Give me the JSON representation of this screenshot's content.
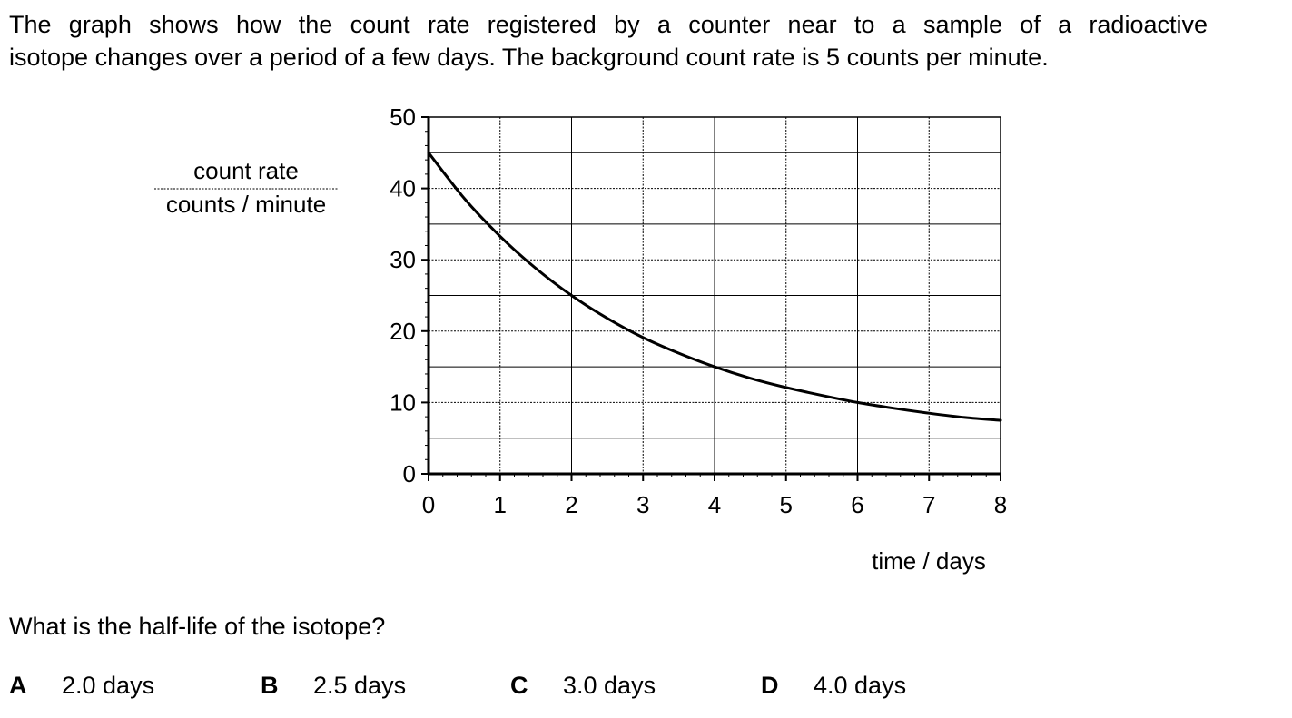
{
  "question": {
    "intro_line1": "The graph shows how the count rate registered by a counter near to a sample of a radioactive",
    "intro_line2": "isotope changes over a period of a few days. The background count rate is 5 counts per minute.",
    "prompt": "What is the half-life of the isotope?",
    "options": [
      {
        "letter": "A",
        "text": "2.0 days"
      },
      {
        "letter": "B",
        "text": "2.5 days"
      },
      {
        "letter": "C",
        "text": "3.0 days"
      },
      {
        "letter": "D",
        "text": "4.0 days"
      }
    ]
  },
  "chart_data": {
    "type": "line",
    "ylabel_top": "count rate",
    "ylabel_bottom": "counts / minute",
    "xlabel": "time / days",
    "xlim": [
      0,
      8
    ],
    "ylim": [
      0,
      50
    ],
    "x_ticks": [
      "0",
      "1",
      "2",
      "3",
      "4",
      "5",
      "6",
      "7",
      "8"
    ],
    "y_ticks": [
      "0",
      "10",
      "20",
      "30",
      "40",
      "50"
    ],
    "grid": true,
    "series": [
      {
        "x": [
          0,
          0.5,
          1,
          1.5,
          2,
          2.5,
          3,
          3.5,
          4,
          4.5,
          5,
          5.5,
          6,
          6.5,
          7,
          7.5,
          8
        ],
        "values": [
          45,
          38.6,
          33.3,
          28.8,
          25,
          21.8,
          19.1,
          16.9,
          15,
          13.4,
          12.1,
          11,
          10,
          9.2,
          8.5,
          7.9,
          7.5
        ]
      }
    ],
    "colors": {
      "line": "#000000",
      "grid": "#000000"
    }
  }
}
